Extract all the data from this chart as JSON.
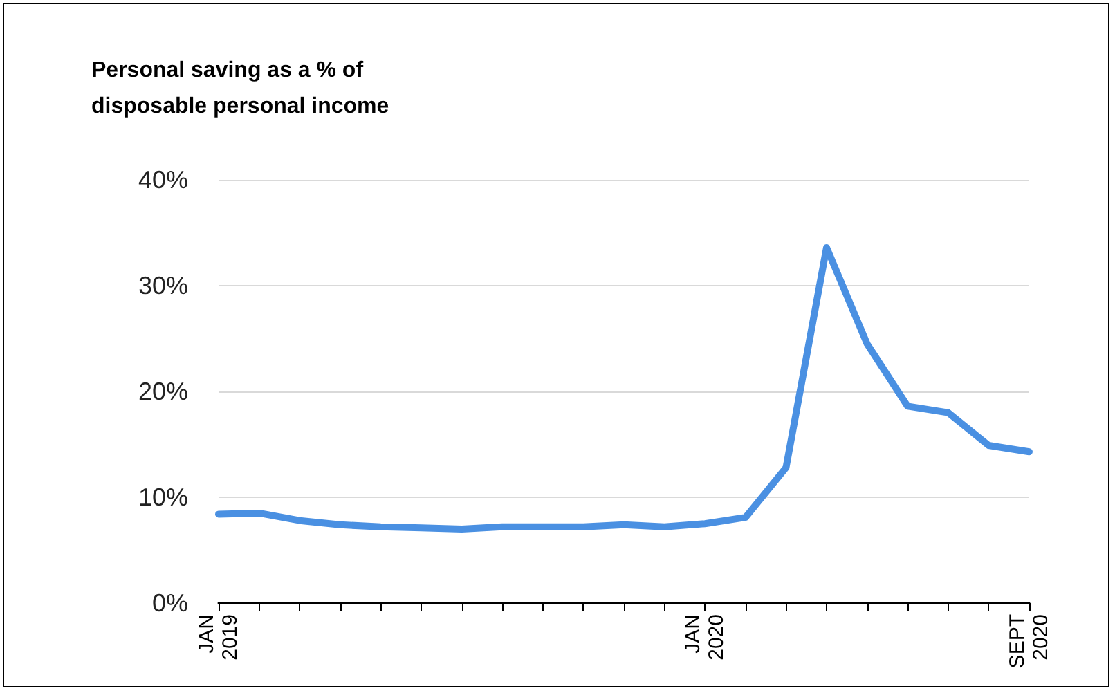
{
  "chart_data": {
    "type": "line",
    "title": "Personal saving as a % of\ndisposable personal income",
    "categories": [
      "JAN 2019",
      null,
      null,
      null,
      null,
      null,
      null,
      null,
      null,
      null,
      null,
      null,
      "JAN 2020",
      null,
      null,
      null,
      null,
      null,
      null,
      null,
      "SEPT 2020"
    ],
    "series": [
      {
        "color": "#4a90e2",
        "values": [
          8.4,
          8.5,
          7.8,
          7.4,
          7.2,
          7.1,
          7.0,
          7.2,
          7.2,
          7.2,
          7.4,
          7.2,
          7.5,
          8.1,
          12.8,
          33.6,
          24.5,
          18.6,
          18.0,
          14.9,
          14.3
        ]
      }
    ],
    "ylim": [
      0,
      40
    ],
    "yticks": [
      {
        "value": 0,
        "label": "0%"
      },
      {
        "value": 10,
        "label": "10%"
      },
      {
        "value": 20,
        "label": "20%"
      },
      {
        "value": 30,
        "label": "30%"
      },
      {
        "value": 40,
        "label": "40%"
      }
    ],
    "grid": "y",
    "marker": "none",
    "line_style": "solid"
  }
}
